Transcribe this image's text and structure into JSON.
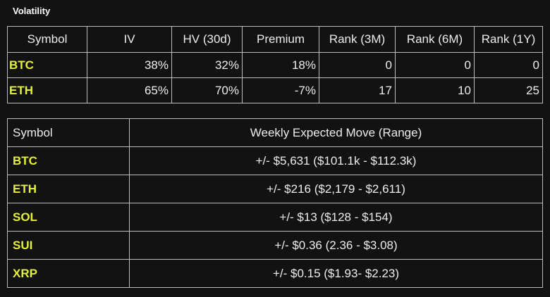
{
  "title": "Volatility",
  "volatility_table": {
    "headers": [
      "Symbol",
      "IV",
      "HV (30d)",
      "Premium",
      "Rank (3M)",
      "Rank (6M)",
      "Rank (1Y)"
    ],
    "rows": [
      {
        "symbol": "BTC",
        "iv": "38%",
        "hv": "32%",
        "premium": "18%",
        "rank3m": "0",
        "rank6m": "0",
        "rank1y": "0"
      },
      {
        "symbol": "ETH",
        "iv": "65%",
        "hv": "70%",
        "premium": "-7%",
        "rank3m": "17",
        "rank6m": "10",
        "rank1y": "25"
      }
    ]
  },
  "move_table": {
    "headers": [
      "Symbol",
      "Weekly Expected Move (Range)"
    ],
    "rows": [
      {
        "symbol": "BTC",
        "range": "+/- $5,631 ($101.1k - $112.3k)"
      },
      {
        "symbol": "ETH",
        "range": "+/- $216 ($2,179 - $2,611)"
      },
      {
        "symbol": "SOL",
        "range": "+/- $13 ($128 - $154)"
      },
      {
        "symbol": "SUI",
        "range": "+/- $0.36 (2.36 - $3.08)"
      },
      {
        "symbol": "XRP",
        "range": "+/- $0.15 ($1.93- $2.23)"
      }
    ]
  },
  "colors": {
    "background": "#121212",
    "symbol": "#e4f03a",
    "border": "#bdbdbd"
  }
}
